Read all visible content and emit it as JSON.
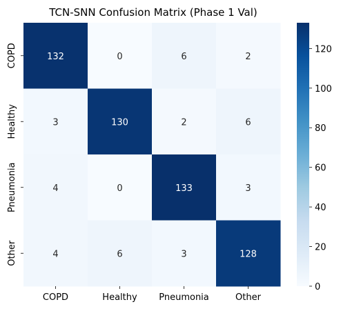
{
  "chart_data": {
    "type": "heatmap",
    "title": "TCN-SNN Confusion Matrix (Phase 1 Val)",
    "rows": [
      "COPD",
      "Healthy",
      "Pneumonia",
      "Other"
    ],
    "cols": [
      "COPD",
      "Healthy",
      "Pneumonia",
      "Other"
    ],
    "values": [
      [
        132,
        0,
        6,
        2
      ],
      [
        3,
        130,
        2,
        6
      ],
      [
        4,
        0,
        133,
        3
      ],
      [
        4,
        6,
        3,
        128
      ]
    ],
    "colormap": "Blues",
    "color_low": "#f7fbff",
    "color_high": "#08306b",
    "colorbar": {
      "range": [
        0,
        133
      ],
      "ticks": [
        0,
        20,
        40,
        60,
        80,
        100,
        120
      ]
    }
  }
}
